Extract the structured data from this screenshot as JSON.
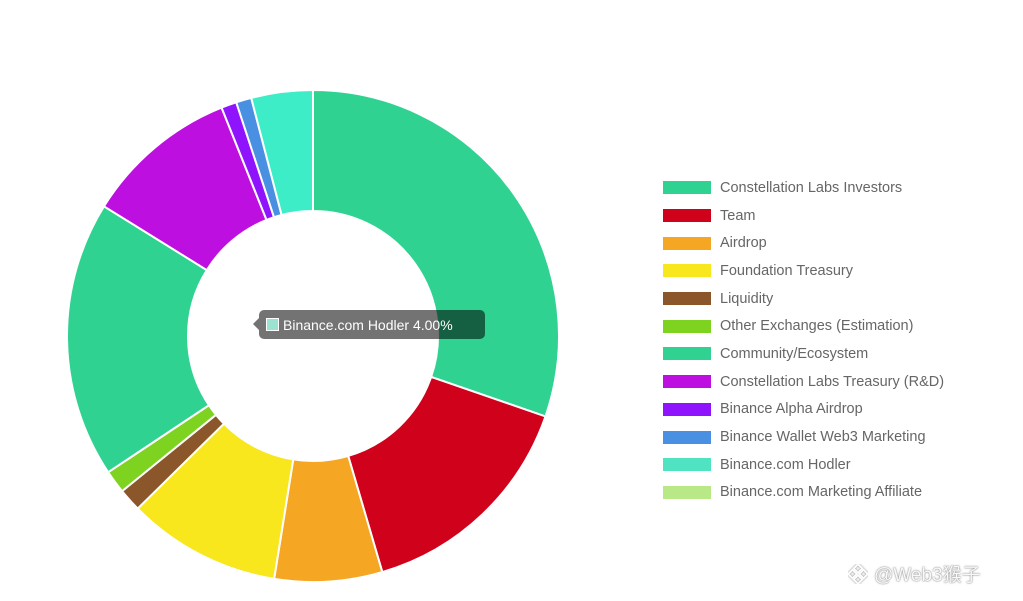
{
  "chart_data": {
    "type": "pie",
    "variant": "doughnut",
    "legend_position": "right",
    "slices": [
      {
        "label": "Constellation Labs Investors",
        "value": 30.0,
        "color": "#30d292"
      },
      {
        "label": "Team",
        "value": 15.0,
        "color": "#d0021b"
      },
      {
        "label": "Airdrop",
        "value": 7.0,
        "color": "#f5a623"
      },
      {
        "label": "Foundation Treasury",
        "value": 10.0,
        "color": "#f8e71c"
      },
      {
        "label": "Liquidity",
        "value": 1.5,
        "color": "#8b572a"
      },
      {
        "label": "Other Exchanges (Estimation)",
        "value": 1.5,
        "color": "#7ed321"
      },
      {
        "label": "Community/Ecosystem",
        "value": 18.0,
        "color": "#30d292"
      },
      {
        "label": "Constellation Labs Treasury (R&D)",
        "value": 10.0,
        "color": "#bd10e0"
      },
      {
        "label": "Binance Alpha Airdrop",
        "value": 1.0,
        "color": "#9013fe"
      },
      {
        "label": "Binance Wallet Web3 Marketing",
        "value": 1.0,
        "color": "#4a90e2"
      },
      {
        "label": "Binance.com Hodler",
        "value": 4.0,
        "color": "#3dedc8"
      },
      {
        "label": "Binance.com Marketing Affiliate",
        "value": 0.0,
        "color": "#b8e986"
      }
    ],
    "legend_swatch_colors": [
      "#30d292",
      "#d0021b",
      "#f5a623",
      "#f8e71c",
      "#8b572a",
      "#7ed321",
      "#30d292",
      "#bd10e0",
      "#9013fe",
      "#4a90e2",
      "#50e3c2",
      "#b8e986"
    ],
    "tooltip": {
      "text": "Binance.com Hodler 4.00%",
      "swatch_color": "#9be3d0"
    }
  },
  "watermark": {
    "text": "@Web3猴子",
    "logo_icon": "binance-square-logo-icon"
  }
}
